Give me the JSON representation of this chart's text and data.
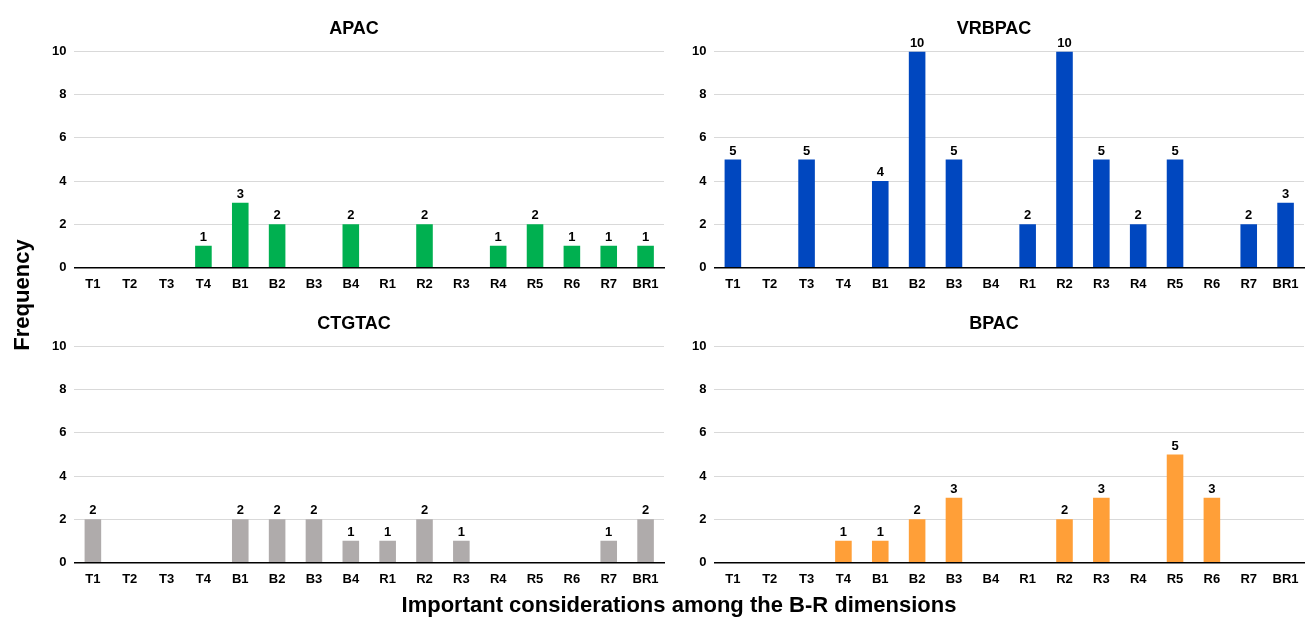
{
  "chart_data": [
    {
      "type": "bar",
      "title": "APAC",
      "ylabel": "Frequency",
      "xlabel": "Important considerations among the B-R dimensions",
      "categories": [
        "T1",
        "T2",
        "T3",
        "T4",
        "B1",
        "B2",
        "B3",
        "B4",
        "R1",
        "R2",
        "R3",
        "R4",
        "R5",
        "R6",
        "R7",
        "BR1"
      ],
      "values": [
        null,
        null,
        null,
        1,
        3,
        2,
        null,
        2,
        null,
        2,
        null,
        1,
        2,
        1,
        1,
        1
      ],
      "color": "#00b050",
      "ylim": [
        0,
        10
      ],
      "yticks": [
        0,
        2,
        4,
        6,
        8,
        10
      ],
      "grid": "y",
      "data_labels": true
    },
    {
      "type": "bar",
      "title": "VRBPAC",
      "categories": [
        "T1",
        "T2",
        "T3",
        "T4",
        "B1",
        "B2",
        "B3",
        "B4",
        "R1",
        "R2",
        "R3",
        "R4",
        "R5",
        "R6",
        "R7",
        "BR1"
      ],
      "values": [
        5,
        null,
        5,
        null,
        4,
        10,
        5,
        null,
        2,
        10,
        5,
        2,
        5,
        null,
        2,
        3
      ],
      "color": "#0047bf",
      "ylim": [
        0,
        10
      ],
      "yticks": [
        0,
        2,
        4,
        6,
        8,
        10
      ],
      "grid": "y",
      "data_labels": true
    },
    {
      "type": "bar",
      "title": "CTGTAC",
      "categories": [
        "T1",
        "T2",
        "T3",
        "T4",
        "B1",
        "B2",
        "B3",
        "B4",
        "R1",
        "R2",
        "R3",
        "R4",
        "R5",
        "R6",
        "R7",
        "BR1"
      ],
      "values": [
        2,
        null,
        null,
        null,
        2,
        2,
        2,
        1,
        1,
        2,
        1,
        null,
        null,
        null,
        1,
        2
      ],
      "color": "#afabab",
      "ylim": [
        0,
        10
      ],
      "yticks": [
        0,
        2,
        4,
        6,
        8,
        10
      ],
      "grid": "y",
      "data_labels": true
    },
    {
      "type": "bar",
      "title": "BPAC",
      "categories": [
        "T1",
        "T2",
        "T3",
        "T4",
        "B1",
        "B2",
        "B3",
        "B4",
        "R1",
        "R2",
        "R3",
        "R4",
        "R5",
        "R6",
        "R7",
        "BR1"
      ],
      "values": [
        null,
        null,
        null,
        1,
        1,
        2,
        3,
        null,
        null,
        2,
        3,
        null,
        5,
        3,
        null,
        null
      ],
      "color": "#ff9f38",
      "ylim": [
        0,
        10
      ],
      "yticks": [
        0,
        2,
        4,
        6,
        8,
        10
      ],
      "grid": "y",
      "data_labels": true
    }
  ]
}
